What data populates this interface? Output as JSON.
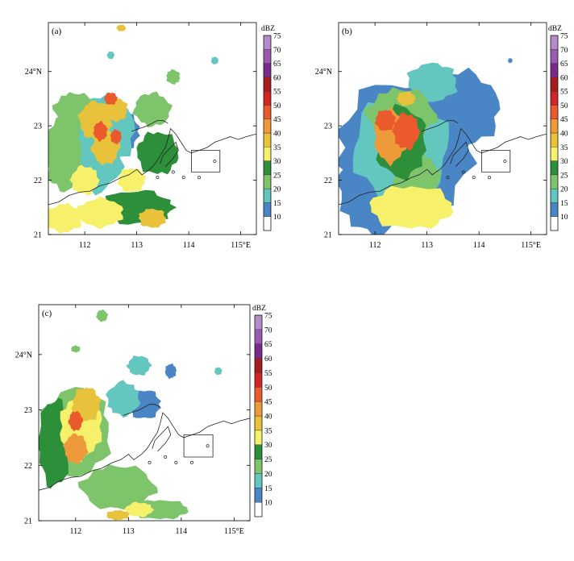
{
  "colorbar": {
    "unit": "dBZ",
    "levels": [
      10,
      15,
      20,
      25,
      30,
      35,
      40,
      45,
      50,
      55,
      60,
      65,
      70,
      75
    ],
    "colors": [
      "#ffffff",
      "#4a86c5",
      "#63c6bf",
      "#7dc46b",
      "#2e8f3a",
      "#f6f06a",
      "#e8c23a",
      "#ee9a3a",
      "#ea5a2c",
      "#d22626",
      "#a61e1e",
      "#7a2a8a",
      "#9a5ab0",
      "#b48ac8"
    ]
  },
  "axes": {
    "x_ticks": [
      "112",
      "113",
      "114",
      "115°E"
    ],
    "y_ticks": [
      "21",
      "22",
      "23",
      "24°N"
    ]
  },
  "chart_data": [
    {
      "type": "heatmap",
      "label": "(a)",
      "x_range": [
        111.3,
        115.3
      ],
      "y_range": [
        21.0,
        24.9
      ],
      "x_tick_values": [
        112,
        113,
        114,
        115
      ],
      "y_tick_values": [
        21,
        22,
        23,
        24
      ],
      "blobs": [
        [
          112.3,
          22.9,
          0.75,
          0.75,
          2
        ],
        [
          112.2,
          22.4,
          0.6,
          0.7,
          2
        ],
        [
          112.7,
          22.9,
          0.4,
          0.4,
          1
        ],
        [
          111.6,
          22.5,
          0.4,
          0.8,
          3
        ],
        [
          111.8,
          23.3,
          0.45,
          0.35,
          3
        ],
        [
          113.3,
          23.3,
          0.4,
          0.35,
          3
        ],
        [
          113.4,
          22.5,
          0.45,
          0.45,
          4
        ],
        [
          113.0,
          21.5,
          0.8,
          0.35,
          4
        ],
        [
          112.3,
          21.4,
          0.5,
          0.3,
          5
        ],
        [
          112.2,
          23.1,
          0.35,
          0.4,
          6
        ],
        [
          112.4,
          22.6,
          0.3,
          0.35,
          6
        ],
        [
          112.6,
          23.3,
          0.25,
          0.25,
          6
        ],
        [
          112.0,
          22.0,
          0.3,
          0.3,
          5
        ],
        [
          112.9,
          22.0,
          0.3,
          0.25,
          5
        ],
        [
          113.3,
          21.3,
          0.3,
          0.2,
          6
        ],
        [
          112.3,
          22.9,
          0.15,
          0.2,
          8
        ],
        [
          112.6,
          22.8,
          0.12,
          0.15,
          8
        ],
        [
          112.5,
          23.5,
          0.14,
          0.13,
          8
        ],
        [
          113.7,
          23.9,
          0.15,
          0.15,
          3
        ],
        [
          112.7,
          24.8,
          0.1,
          0.07,
          6
        ],
        [
          112.5,
          24.3,
          0.08,
          0.08,
          2
        ],
        [
          114.5,
          24.2,
          0.08,
          0.08,
          2
        ],
        [
          111.6,
          21.3,
          0.4,
          0.3,
          5
        ]
      ]
    },
    {
      "type": "heatmap",
      "label": "(b)",
      "x_range": [
        111.3,
        115.3
      ],
      "y_range": [
        21.0,
        24.9
      ],
      "x_tick_values": [
        112,
        113,
        114,
        115
      ],
      "y_tick_values": [
        21,
        22,
        23,
        24
      ],
      "blobs": [
        [
          112.6,
          22.6,
          1.5,
          1.4,
          1
        ],
        [
          113.6,
          23.3,
          0.9,
          0.8,
          1
        ],
        [
          112.0,
          21.8,
          0.8,
          0.9,
          1
        ],
        [
          112.5,
          22.6,
          1.05,
          1.1,
          2
        ],
        [
          113.1,
          23.8,
          0.55,
          0.4,
          2
        ],
        [
          112.5,
          23.2,
          0.75,
          0.55,
          3
        ],
        [
          112.8,
          22.0,
          0.5,
          0.6,
          3
        ],
        [
          112.5,
          22.7,
          0.55,
          0.75,
          4
        ],
        [
          112.7,
          21.5,
          0.9,
          0.45,
          5
        ],
        [
          112.3,
          22.8,
          0.35,
          0.55,
          7
        ],
        [
          112.6,
          22.9,
          0.28,
          0.38,
          8
        ],
        [
          112.2,
          23.1,
          0.22,
          0.22,
          8
        ],
        [
          112.6,
          23.5,
          0.2,
          0.15,
          6
        ],
        [
          114.6,
          24.2,
          0.05,
          0.05,
          1
        ]
      ]
    },
    {
      "type": "heatmap",
      "label": "(c)",
      "x_range": [
        111.3,
        115.3
      ],
      "y_range": [
        21.0,
        24.9
      ],
      "x_tick_values": [
        112,
        113,
        114,
        115
      ],
      "y_tick_values": [
        21,
        22,
        23,
        24
      ],
      "blobs": [
        [
          112.0,
          22.6,
          0.75,
          0.9,
          3
        ],
        [
          111.6,
          22.4,
          0.35,
          0.9,
          4
        ],
        [
          112.8,
          21.6,
          0.8,
          0.45,
          3
        ],
        [
          112.1,
          22.7,
          0.45,
          0.65,
          5
        ],
        [
          112.2,
          23.1,
          0.3,
          0.35,
          6
        ],
        [
          112.0,
          22.3,
          0.25,
          0.3,
          7
        ],
        [
          112.0,
          22.8,
          0.15,
          0.2,
          8
        ],
        [
          112.9,
          23.2,
          0.35,
          0.35,
          2
        ],
        [
          113.3,
          23.1,
          0.35,
          0.3,
          1
        ],
        [
          113.2,
          23.8,
          0.25,
          0.2,
          2
        ],
        [
          113.8,
          23.7,
          0.12,
          0.15,
          1
        ],
        [
          112.5,
          24.7,
          0.12,
          0.12,
          3
        ],
        [
          112.0,
          24.1,
          0.1,
          0.07,
          3
        ],
        [
          113.6,
          21.2,
          0.6,
          0.2,
          3
        ],
        [
          113.2,
          21.2,
          0.3,
          0.15,
          5
        ],
        [
          112.8,
          21.1,
          0.25,
          0.1,
          6
        ],
        [
          114.7,
          23.7,
          0.08,
          0.08,
          2
        ]
      ]
    }
  ]
}
